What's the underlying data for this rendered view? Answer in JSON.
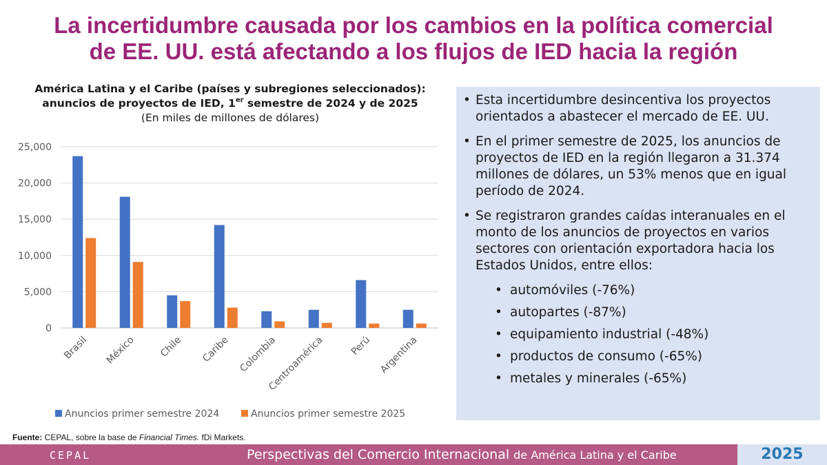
{
  "slide_title": {
    "line1": "La incertidumbre causada por los cambios en la política comercial",
    "line2": "de EE. UU. está afectando a los flujos de IED hacia la región"
  },
  "chart_title": {
    "line1": "América Latina y el Caribe (países y subregiones seleccionados):",
    "line2_pre": "anuncios de proyectos de IED, 1",
    "line2_sup": "er",
    "line2_post": " semestre de 2024 y de 2025",
    "subtitle": "(En miles de millones de dólares)"
  },
  "chart_data": {
    "type": "bar",
    "categories": [
      "Brasil",
      "México",
      "Chile",
      "Caribe",
      "Colombia",
      "Centroamérica",
      "Perú",
      "Argentina"
    ],
    "series": [
      {
        "name": "Anuncios primer semestre 2024",
        "color": "#4472c4",
        "values": [
          23700,
          18100,
          4500,
          14200,
          2300,
          2500,
          6600,
          2500
        ]
      },
      {
        "name": "Anuncios primer semestre 2025",
        "color": "#ed7d31",
        "values": [
          12400,
          9100,
          3700,
          2800,
          900,
          700,
          600,
          600
        ]
      }
    ],
    "y_ticks": [
      "0",
      "5,000",
      "10,000",
      "15,000",
      "20,000",
      "25,000"
    ],
    "ylim": [
      0,
      25000
    ],
    "grid": true,
    "legend_position": "bottom"
  },
  "bullets": [
    "Esta incertidumbre desincentiva los proyectos orientados a abastecer el mercado de EE. UU.",
    "En el primer semestre de 2025, los anuncios de proyectos de IED en la región llegaron a 31.374 millones de dólares, un 53% menos que en igual período de 2024.",
    "Se registraron grandes caídas interanuales en el monto de los anuncios de proyectos en varios sectores con orientación exportadora hacia los Estados Unidos, entre ellos:"
  ],
  "sub_bullets": [
    "automóviles (-76%)",
    "autopartes (-87%)",
    "equipamiento industrial (-48%)",
    "productos de consumo (-65%)",
    "metales y minerales (-65%)"
  ],
  "bullet_symbol": "•",
  "source": {
    "label": "Fuente:",
    "pre": " CEPAL, sobre la base de ",
    "italic": "Financial Times.",
    "post": " fDi Markets."
  },
  "footer": {
    "logo_text": "CEPAL",
    "title": "Perspectivas del Comercio Internacional",
    "subtitle": "de  América Latina y el Caribe",
    "year": "2025"
  },
  "colors": {
    "title": "#9b2577",
    "footer_bar": "#b45a85",
    "panel": "#dae3f3",
    "year": "#2a78b4"
  }
}
